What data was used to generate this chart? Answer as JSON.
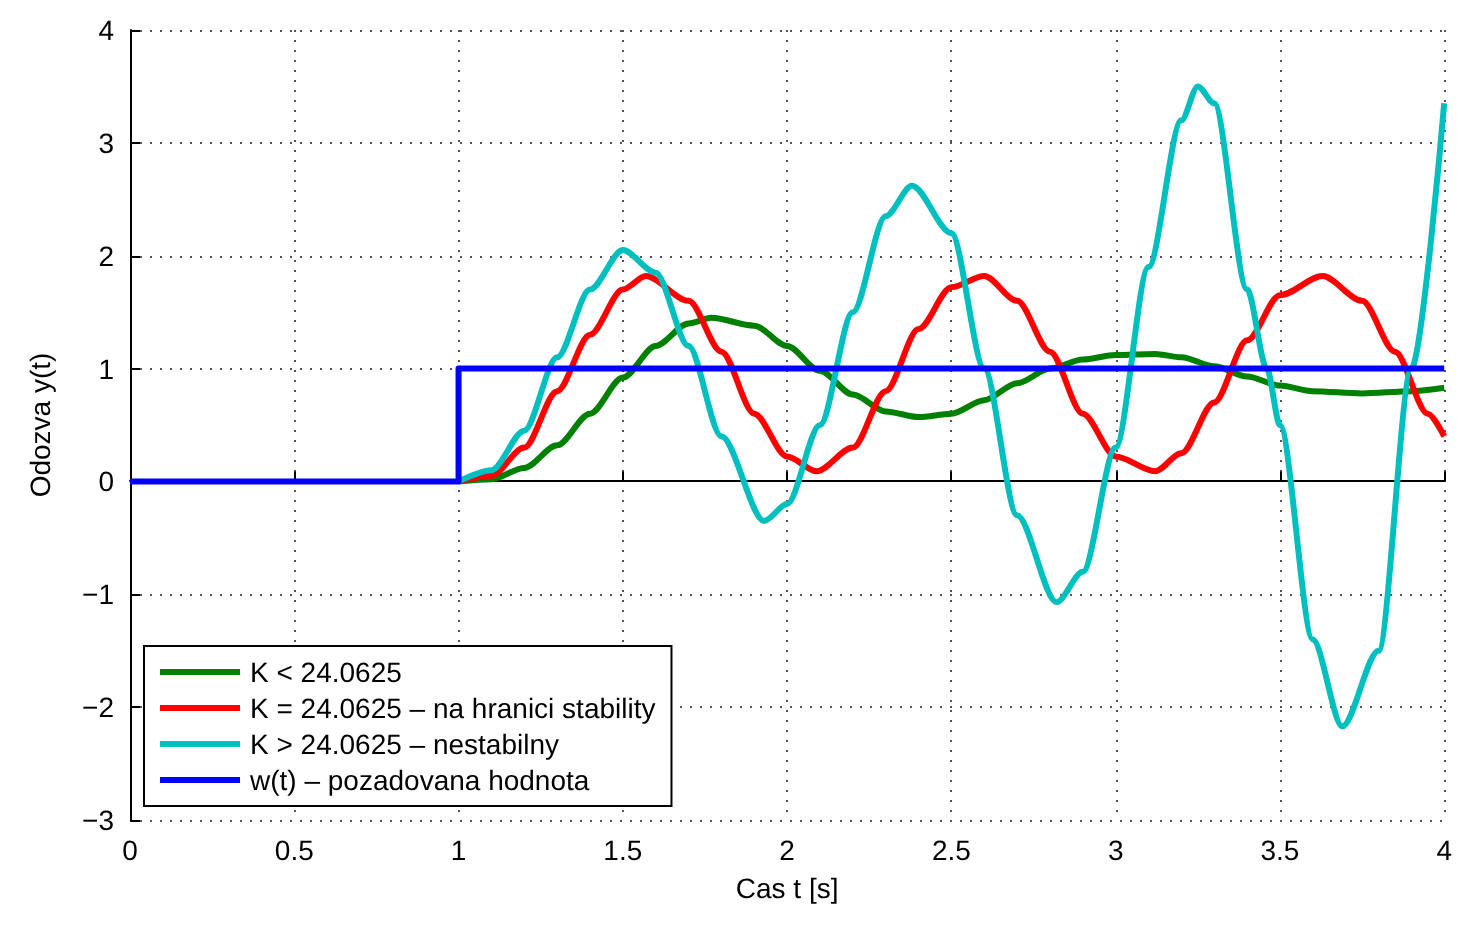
{
  "chart_data": {
    "type": "line",
    "xlabel": "Cas t [s]",
    "ylabel": "Odozva y(t)",
    "xlim": [
      0,
      4
    ],
    "xticks": [
      0,
      0.5,
      1,
      1.5,
      2,
      2.5,
      3,
      3.5,
      4
    ],
    "ylim": [
      -3,
      4
    ],
    "yticks": [
      -3,
      -2,
      -1,
      0,
      1,
      2,
      3,
      4
    ],
    "grid": true,
    "legend": "bottom left",
    "marker": "none",
    "line_style": "solid",
    "series": [
      {
        "name": "K < 24.0625",
        "color": "#008000",
        "x": [
          1,
          1.1,
          1.2,
          1.3,
          1.4,
          1.5,
          1.6,
          1.7,
          1.77,
          1.9,
          2.0,
          2.1,
          2.2,
          2.3,
          2.4,
          2.5,
          2.6,
          2.7,
          2.8,
          2.9,
          3.0,
          3.12,
          3.2,
          3.3,
          3.4,
          3.5,
          3.6,
          3.75,
          3.9,
          4.0
        ],
        "values": [
          0,
          0.02,
          0.12,
          0.32,
          0.6,
          0.92,
          1.2,
          1.4,
          1.45,
          1.38,
          1.2,
          0.98,
          0.77,
          0.62,
          0.57,
          0.6,
          0.72,
          0.87,
          1.0,
          1.08,
          1.12,
          1.13,
          1.1,
          1.02,
          0.93,
          0.85,
          0.8,
          0.78,
          0.8,
          0.83
        ]
      },
      {
        "name": "K = 24.0625 – na hranici stability",
        "color": "#ff0000",
        "x": [
          1,
          1.1,
          1.2,
          1.3,
          1.4,
          1.5,
          1.57,
          1.7,
          1.8,
          1.9,
          2.0,
          2.09,
          2.2,
          2.3,
          2.4,
          2.5,
          2.6,
          2.7,
          2.8,
          2.9,
          3.0,
          3.12,
          3.2,
          3.3,
          3.4,
          3.5,
          3.63,
          3.75,
          3.85,
          3.95,
          4.0
        ],
        "values": [
          0,
          0.05,
          0.3,
          0.8,
          1.3,
          1.7,
          1.82,
          1.6,
          1.15,
          0.6,
          0.22,
          0.09,
          0.3,
          0.8,
          1.35,
          1.72,
          1.82,
          1.6,
          1.15,
          0.6,
          0.22,
          0.09,
          0.25,
          0.7,
          1.25,
          1.65,
          1.82,
          1.6,
          1.15,
          0.6,
          0.4
        ]
      },
      {
        "name": "K > 24.0625 – nestabilny",
        "color": "#00bfbf",
        "x": [
          1,
          1.1,
          1.2,
          1.3,
          1.4,
          1.5,
          1.6,
          1.7,
          1.8,
          1.93,
          2.0,
          2.1,
          2.2,
          2.3,
          2.38,
          2.5,
          2.6,
          2.7,
          2.82,
          2.9,
          3.0,
          3.1,
          3.2,
          3.25,
          3.3,
          3.4,
          3.46,
          3.5,
          3.6,
          3.69,
          3.8,
          3.9,
          4.0
        ],
        "values": [
          0,
          0.1,
          0.45,
          1.1,
          1.7,
          2.05,
          1.85,
          1.2,
          0.4,
          -0.35,
          -0.2,
          0.5,
          1.5,
          2.35,
          2.62,
          2.2,
          1.0,
          -0.3,
          -1.07,
          -0.8,
          0.3,
          1.9,
          3.2,
          3.5,
          3.35,
          1.7,
          1.0,
          0.5,
          -1.4,
          -2.17,
          -1.5,
          1.0,
          3.35
        ]
      },
      {
        "name": "w(t) – pozadovana hodnota",
        "color": "#0000ff",
        "x": [
          0,
          1,
          1,
          4
        ],
        "values": [
          0,
          0,
          1,
          1
        ]
      }
    ]
  }
}
